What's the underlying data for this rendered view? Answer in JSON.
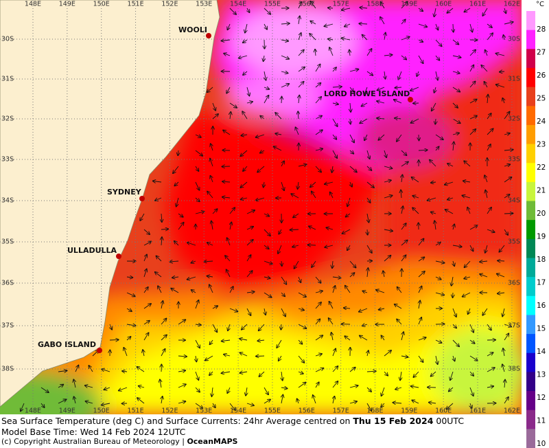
{
  "map": {
    "longitudes": [
      "148E",
      "149E",
      "150E",
      "151E",
      "152E",
      "153E",
      "154E",
      "155E",
      "156E",
      "157E",
      "158E",
      "159E",
      "160E",
      "161E",
      "162E"
    ],
    "latitudes": [
      "30S",
      "31S",
      "32S",
      "33S",
      "34S",
      "35S",
      "36S",
      "37S",
      "38S"
    ],
    "places": [
      {
        "name": "WOOLI"
      },
      {
        "name": "LORD HOWE ISLAND"
      },
      {
        "name": "SYDNEY"
      },
      {
        "name": "ULLADULLA"
      },
      {
        "name": "GABO ISLAND"
      }
    ],
    "colorbar": {
      "unit": "°C",
      "labels": [
        "28",
        "27",
        "26",
        "25",
        "24",
        "23",
        "22",
        "21",
        "20",
        "19",
        "18",
        "17",
        "16",
        "15",
        "14",
        "13",
        "12",
        "11",
        "10"
      ],
      "colors": [
        "#ff99ff",
        "#ff22ff",
        "#d0004a",
        "#ff0000",
        "#e8401c",
        "#ff6a00",
        "#ff9d00",
        "#ffd000",
        "#ffff00",
        "#c8f53c",
        "#6fbb38",
        "#009a00",
        "#008855",
        "#00aa99",
        "#00cccc",
        "#00ffff",
        "#3399ff",
        "#0055ff",
        "#1a00cc",
        "#330088",
        "#660088",
        "#8a2a8a",
        "#9a6a9a"
      ]
    }
  },
  "caption": {
    "line1_prefix": "Sea Surface Temperature (deg C) and Surface Currents: 24hr Average centred on ",
    "line1_date": "Thu 15 Feb 2024",
    "line1_suffix": " 00UTC",
    "line2": "Model Base Time: Wed 14 Feb 2024 12UTC",
    "line3_prefix": "(c) Copyright Australian Bureau of Meteorology | ",
    "line3_brand": "OceanMAPS"
  }
}
